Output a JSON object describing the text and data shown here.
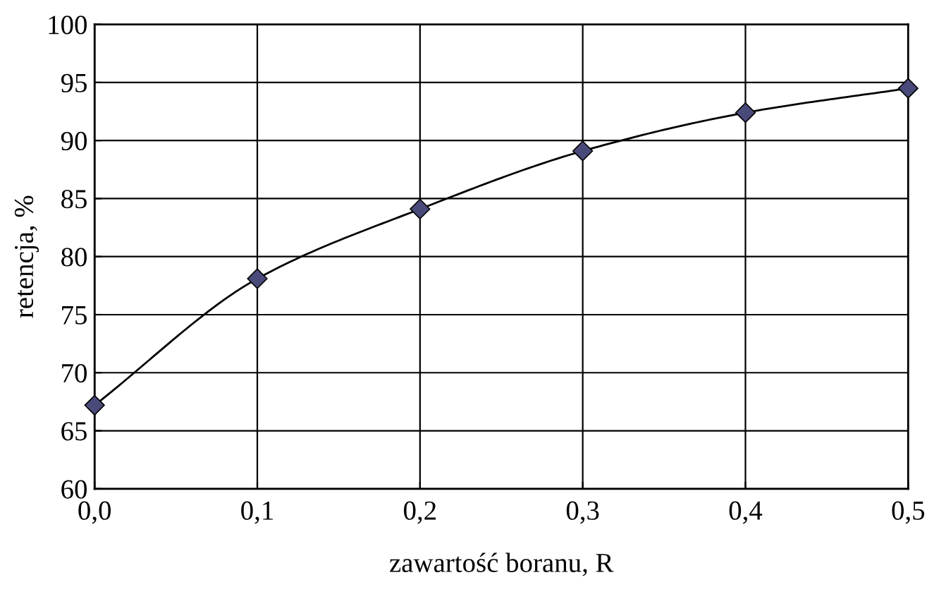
{
  "chart_data": {
    "type": "line",
    "xlabel": "zawartość boranu, R",
    "ylabel": "retencja, %",
    "x": [
      0,
      0.1,
      0.2,
      0.3,
      0.4,
      0.5
    ],
    "series": [
      {
        "color": "#4a4a7a",
        "values": [
          67.2,
          78.1,
          84.1,
          89.1,
          92.4,
          94.5
        ]
      }
    ],
    "xlim": [
      0,
      0.5
    ],
    "xticks": [
      {
        "value": 0,
        "label": "0,0"
      },
      {
        "value": 0.1,
        "label": "0,1"
      },
      {
        "value": 0.2,
        "label": "0,2"
      },
      {
        "value": 0.3,
        "label": "0,3"
      },
      {
        "value": 0.4,
        "label": "0,4"
      },
      {
        "value": 0.5,
        "label": "0,5"
      }
    ],
    "ylim": [
      60,
      100
    ],
    "yticks": [
      60,
      65,
      70,
      75,
      80,
      85,
      90,
      95,
      100
    ],
    "grid": true,
    "marker": "diamond",
    "line_style": "solid"
  }
}
